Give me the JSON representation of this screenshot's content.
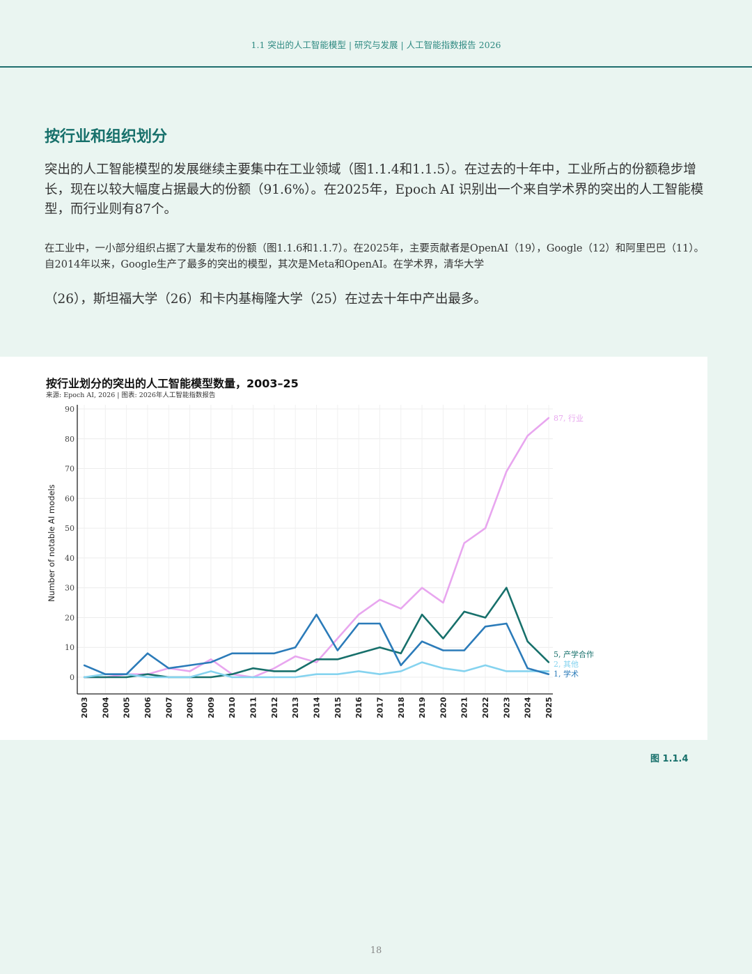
{
  "header": {
    "text": "1.1 突出的人工智能模型 | 研究与发展 | 人工智能指数报告 2026"
  },
  "section": {
    "title": "按行业和组织划分",
    "para1": "突出的人工智能模型的发展继续主要集中在工业领域（图1.1.4和1.1.5）。在过去的十年中，工业所占的份额稳步增长，现在以较大幅度占据最大的份额（91.6%）。在2025年，Epoch AI 识别出一个来自学术界的突出的人工智能模型，而行业则有87个。",
    "para2": "在工业中，一小部分组织占据了大量发布的份额（图1.1.6和1.1.7）。在2025年，主要贡献者是OpenAI（19），Google（12）和阿里巴巴（11）。自2014年以来，Google生产了最多的突出的模型，其次是Meta和OpenAI。在学术界，清华大学",
    "para3": "（26），斯坦福大学（26）和卡内基梅隆大学（25）在过去十年中产出最多。"
  },
  "figure_label": "图 1.1.4",
  "page_number": "18",
  "colors": {
    "header_line": "#1f6e6e",
    "title": "#17706b",
    "industry": "#e8a6ef",
    "collaboration": "#17706b",
    "academia": "#2b7bb9",
    "other": "#85d3ef"
  },
  "chart_data": {
    "type": "line",
    "title": "按行业划分的突出的人工智能模型数量，2003–25",
    "source": "来源:  Epoch AI, 2026 | 图表:  2026年人工智能指数报告",
    "ylabel": "Number of notable AI models",
    "xlabel": "",
    "ylim": [
      0,
      90
    ],
    "yticks": [
      0,
      10,
      20,
      30,
      40,
      50,
      60,
      70,
      80,
      90
    ],
    "grid": true,
    "x": [
      "2003",
      "2004",
      "2005",
      "2006",
      "2007",
      "2008",
      "2009",
      "2010",
      "2011",
      "2012",
      "2013",
      "2014",
      "2015",
      "2016",
      "2017",
      "2018",
      "2019",
      "2020",
      "2021",
      "2022",
      "2023",
      "2024",
      "2025"
    ],
    "series": [
      {
        "key": "industry",
        "name": "行业",
        "end_label": "87, 行业",
        "values": [
          0,
          0,
          1,
          1,
          3,
          2,
          6,
          1,
          0,
          3,
          7,
          5,
          13,
          21,
          26,
          23,
          30,
          25,
          45,
          50,
          69,
          81,
          87
        ]
      },
      {
        "key": "collaboration",
        "name": "产学合作",
        "end_label": "5,  产学合作",
        "values": [
          0,
          0,
          0,
          1,
          0,
          0,
          0,
          1,
          3,
          2,
          2,
          6,
          6,
          8,
          10,
          8,
          21,
          13,
          22,
          20,
          30,
          12,
          5
        ]
      },
      {
        "key": "other",
        "name": "其他",
        "end_label": "2,  其他",
        "values": [
          0,
          1,
          1,
          0,
          0,
          0,
          2,
          0,
          0,
          0,
          0,
          1,
          1,
          2,
          1,
          2,
          5,
          3,
          2,
          4,
          2,
          2,
          2
        ]
      },
      {
        "key": "academia",
        "name": "学术",
        "end_label": "1,  学术",
        "values": [
          4,
          1,
          1,
          8,
          3,
          4,
          5,
          8,
          8,
          8,
          10,
          21,
          9,
          18,
          18,
          4,
          12,
          9,
          9,
          17,
          18,
          3,
          1
        ]
      }
    ]
  }
}
